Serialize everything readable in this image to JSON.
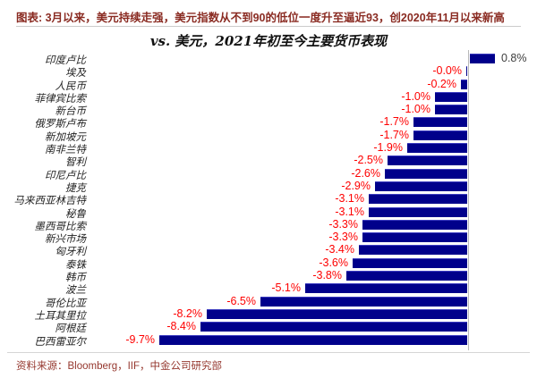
{
  "header": {
    "title": "图表: 3月以来，美元持续走强，美元指数从不到90的低位一度升至逼近93，创2020年11月以来新高"
  },
  "chart_data": {
    "type": "bar",
    "orientation": "horizontal",
    "title": "vs. 美元，2021年初至今主要货币表现",
    "xlabel": "",
    "ylabel": "",
    "xlim": [
      -10.5,
      1.5
    ],
    "grid": false,
    "legend": "none",
    "unit": "%",
    "categories": [
      "印度卢比",
      "埃及",
      "人民币",
      "菲律宾比索",
      "新台币",
      "俄罗斯卢布",
      "新加坡元",
      "南非兰特",
      "智利",
      "印尼卢比",
      "捷克",
      "马来西亚林吉特",
      "秘鲁",
      "墨西哥比索",
      "新兴市场",
      "匈牙利",
      "泰铢",
      "韩币",
      "波兰",
      "哥伦比亚",
      "土耳其里拉",
      "阿根廷",
      "巴西雷亚尔"
    ],
    "values": [
      0.8,
      -0.0,
      -0.2,
      -1.0,
      -1.0,
      -1.7,
      -1.7,
      -1.9,
      -2.5,
      -2.6,
      -2.9,
      -3.1,
      -3.1,
      -3.3,
      -3.3,
      -3.4,
      -3.6,
      -3.8,
      -5.1,
      -6.5,
      -8.2,
      -8.4,
      -9.7
    ],
    "value_labels": [
      "0.8%",
      "-0.0%",
      "-0.2%",
      "-1.0%",
      "-1.0%",
      "-1.7%",
      "-1.7%",
      "-1.9%",
      "-2.5%",
      "-2.6%",
      "-2.9%",
      "-3.1%",
      "-3.1%",
      "-3.3%",
      "-3.3%",
      "-3.4%",
      "-3.6%",
      "-3.8%",
      "-5.1%",
      "-6.5%",
      "-8.2%",
      "-8.4%",
      "-9.7%"
    ],
    "bar_color": "#00008b",
    "negative_label_color": "#fe0000",
    "positive_label_color": "#3d3d3d",
    "axis_color": "#b8b8b8"
  },
  "footer": {
    "source": "资料来源：Bloomberg，IIF，中金公司研究部"
  }
}
